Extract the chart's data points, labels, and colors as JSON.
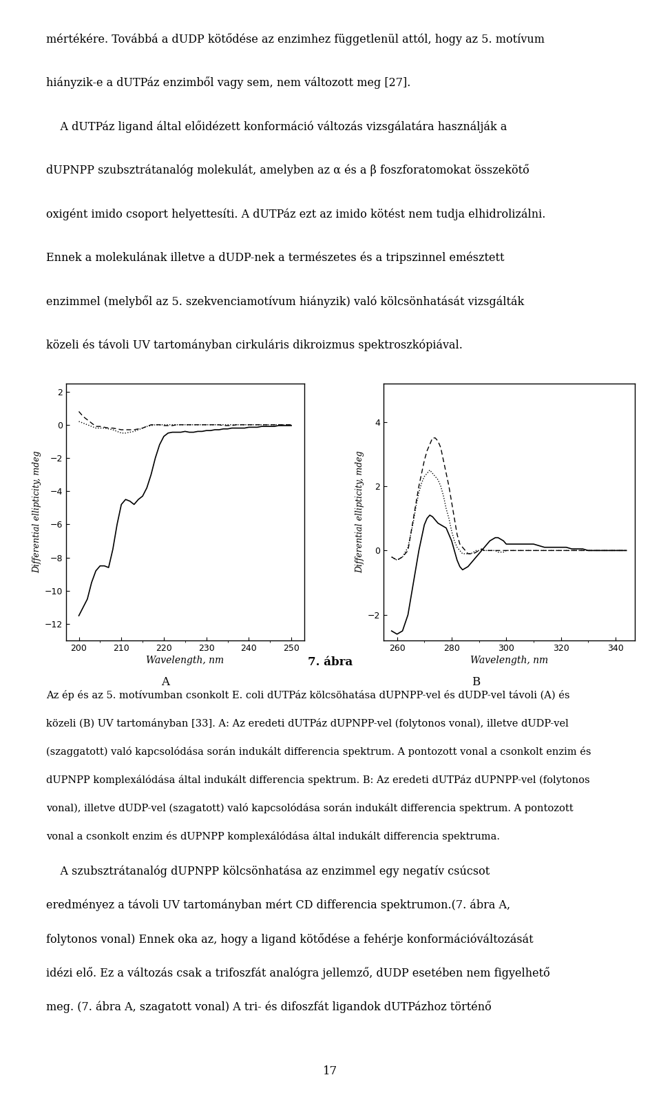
{
  "page_background": "#ffffff",
  "text_color": "#000000",
  "font_size_body": 11.5,
  "font_size_caption": 10.5,
  "font_size_figure_label": 12,
  "font_size_page_num": 12,
  "top_text_lines": [
    "mértékére. Továbbá a dUDP kötődése az enzimhez függetlenül attól, hogy az 5. motívum",
    "",
    "hiányzik-e a dUTPáz enzimből vagy sem, nem változott meg [27].",
    "",
    "    A dUTPáz ligand által előidézett konformáció változás vizsgálatára használják a",
    "",
    "dUPNPP szubsztrátanalóg molekulát, amelyben az α és a β foszforatomokat összekötő",
    "",
    "oxigént imido csoport helyettesíti. A dUTPáz ezt az imido kötést nem tudja elhidrolizálni.",
    "",
    "Ennek a molekulának illetve a dUDP-nek a természetes és a tripszinnel emésztett",
    "",
    "enzimmel (melyből az 5. szekvenciamotívum hiányzik) való kölcsönhatását vizsgálták",
    "",
    "közeli és távoli UV tartományban cirkuláris dikroizmus spektroszkópiával."
  ],
  "figure_title": "7. ábra",
  "label_A": "A",
  "label_B": "B",
  "caption_lines": [
    "Az ép és az 5. motívumban csonkolt E. coli dUTPáz kölcsöhatása dUPNPP-vel és dUDP-vel távoli (A) és",
    "közeli (B) UV tartományban [33]. A: Az eredeti dUTPáz dUPNPP-vel (folytonos vonal), illetve dUDP-vel",
    "(szaggatott) való kapcsolódása során indukált differencia spektrum. A pontozott vonal a csonkolt enzim és",
    "dUPNPP komplexálódása által indukált differencia spektrum. B: Az eredeti dUTPáz dUPNPP-vel (folytonos",
    "vonal), illetve dUDP-vel (szagatott) való kapcsolódása során indukált differencia spektrum. A pontozott",
    "vonal a csonkolt enzim és dUPNPP komplexálódása által indukált differencia spektruma."
  ],
  "bottom_text_lines": [
    "    A szubsztrátanalóg dUPNPP kölcsönhatása az enzimmel egy negatív csúcsot",
    "eredményez a távoli UV tartományban mért CD differencia spektrumon.(7. ábra A,",
    "folytonos vonal) Ennek oka az, hogy a ligand kötődése a fehérje konformációváltozását",
    "idézi elő. Ez a változás csak a trifoszfát analógra jellemző, dUDP esetében nem figyelhető",
    "meg. (7. ábra A, szagatott vonal) A tri- és difoszfát ligandok dUTPázhoz történő"
  ],
  "page_number": "17",
  "plot_A": {
    "xlabel": "Wavelength, nm",
    "ylabel": "Differential ellipticity, mdeg",
    "xlim": [
      197,
      253
    ],
    "ylim": [
      -13,
      2.5
    ],
    "xticks": [
      200,
      210,
      220,
      230,
      240,
      250
    ],
    "yticks": [
      2,
      0,
      -2,
      -4,
      -6,
      -8,
      -10,
      -12
    ],
    "solid_x": [
      200,
      201,
      202,
      203,
      204,
      205,
      206,
      207,
      208,
      209,
      210,
      211,
      212,
      213,
      214,
      215,
      216,
      217,
      218,
      219,
      220,
      221,
      222,
      223,
      224,
      225,
      226,
      227,
      228,
      229,
      230,
      231,
      232,
      233,
      234,
      235,
      236,
      237,
      238,
      239,
      240,
      241,
      242,
      243,
      244,
      245,
      246,
      247,
      248,
      249,
      250
    ],
    "solid_y": [
      -11.5,
      -11.0,
      -10.5,
      -9.5,
      -8.8,
      -8.5,
      -8.5,
      -8.6,
      -7.5,
      -6.0,
      -4.8,
      -4.5,
      -4.6,
      -4.8,
      -4.5,
      -4.3,
      -3.8,
      -3.0,
      -2.0,
      -1.2,
      -0.7,
      -0.5,
      -0.45,
      -0.45,
      -0.45,
      -0.4,
      -0.45,
      -0.45,
      -0.4,
      -0.4,
      -0.35,
      -0.35,
      -0.3,
      -0.3,
      -0.25,
      -0.25,
      -0.2,
      -0.2,
      -0.2,
      -0.2,
      -0.15,
      -0.15,
      -0.15,
      -0.1,
      -0.1,
      -0.1,
      -0.1,
      -0.05,
      -0.05,
      -0.05,
      -0.05
    ],
    "dashed_x": [
      200,
      201,
      202,
      203,
      204,
      205,
      206,
      207,
      208,
      209,
      210,
      211,
      212,
      213,
      214,
      215,
      216,
      217,
      218,
      219,
      220,
      221,
      222,
      223,
      224,
      225,
      226,
      227,
      228,
      229,
      230,
      231,
      232,
      233,
      234,
      235,
      236,
      237,
      238,
      239,
      240,
      241,
      242,
      243,
      244,
      245,
      246,
      247,
      248,
      249,
      250
    ],
    "dashed_y": [
      0.8,
      0.5,
      0.3,
      0.1,
      -0.1,
      -0.1,
      -0.15,
      -0.2,
      -0.2,
      -0.25,
      -0.3,
      -0.3,
      -0.3,
      -0.3,
      -0.25,
      -0.2,
      -0.1,
      0.0,
      0.0,
      0.0,
      -0.05,
      -0.05,
      -0.05,
      0.0,
      0.0,
      0.0,
      0.0,
      0.0,
      0.0,
      0.0,
      0.0,
      0.0,
      0.0,
      0.0,
      -0.05,
      -0.05,
      -0.05,
      0.0,
      0.0,
      0.0,
      0.0,
      0.0,
      0.0,
      0.0,
      0.0,
      0.0,
      0.0,
      0.0,
      0.0,
      0.0,
      0.0
    ],
    "dotted_x": [
      200,
      201,
      202,
      203,
      204,
      205,
      206,
      207,
      208,
      209,
      210,
      211,
      212,
      213,
      214,
      215,
      216,
      217,
      218,
      219,
      220,
      221,
      222,
      223,
      224,
      225,
      226,
      227,
      228,
      229,
      230,
      231,
      232,
      233,
      234,
      235,
      236,
      237,
      238,
      239,
      240,
      241,
      242,
      243,
      244,
      245,
      246,
      247,
      248,
      249,
      250
    ],
    "dotted_y": [
      0.2,
      0.1,
      0.0,
      -0.1,
      -0.2,
      -0.2,
      -0.2,
      -0.25,
      -0.3,
      -0.4,
      -0.5,
      -0.5,
      -0.45,
      -0.4,
      -0.3,
      -0.2,
      -0.1,
      -0.05,
      0.0,
      0.0,
      0.0,
      0.0,
      0.0,
      0.0,
      0.0,
      0.0,
      0.0,
      0.0,
      0.0,
      0.0,
      0.0,
      0.0,
      0.0,
      0.0,
      0.0,
      0.0,
      0.0,
      0.0,
      0.0,
      0.0,
      0.0,
      0.0,
      0.0,
      0.0,
      0.0,
      0.0,
      0.0,
      0.0,
      0.0,
      0.0,
      0.0
    ]
  },
  "plot_B": {
    "xlabel": "Wavelength, nm",
    "ylabel": "Differential ellipticity, mdeg",
    "xlim": [
      255,
      347
    ],
    "ylim": [
      -2.8,
      5.2
    ],
    "xticks": [
      260,
      280,
      300,
      320,
      340
    ],
    "yticks": [
      -2,
      0,
      2,
      4
    ],
    "solid_x": [
      258,
      260,
      262,
      264,
      265,
      266,
      267,
      268,
      269,
      270,
      271,
      272,
      273,
      274,
      275,
      276,
      277,
      278,
      279,
      280,
      281,
      282,
      283,
      284,
      285,
      286,
      287,
      288,
      289,
      290,
      291,
      292,
      293,
      294,
      295,
      296,
      297,
      298,
      299,
      300,
      302,
      304,
      306,
      308,
      310,
      312,
      314,
      316,
      318,
      320,
      322,
      324,
      326,
      328,
      330,
      332,
      334,
      336,
      338,
      340,
      342,
      344
    ],
    "solid_y": [
      -2.5,
      -2.6,
      -2.5,
      -2.0,
      -1.5,
      -1.0,
      -0.5,
      0.0,
      0.4,
      0.8,
      1.0,
      1.1,
      1.05,
      0.95,
      0.85,
      0.8,
      0.75,
      0.7,
      0.5,
      0.3,
      0.0,
      -0.3,
      -0.5,
      -0.6,
      -0.55,
      -0.5,
      -0.4,
      -0.3,
      -0.2,
      -0.1,
      0.0,
      0.1,
      0.2,
      0.3,
      0.35,
      0.4,
      0.4,
      0.35,
      0.3,
      0.2,
      0.2,
      0.2,
      0.2,
      0.2,
      0.2,
      0.15,
      0.1,
      0.1,
      0.1,
      0.1,
      0.1,
      0.05,
      0.05,
      0.05,
      0.0,
      0.0,
      0.0,
      0.0,
      0.0,
      0.0,
      0.0,
      0.0
    ],
    "dashed_x": [
      258,
      260,
      262,
      264,
      265,
      266,
      267,
      268,
      269,
      270,
      271,
      272,
      273,
      274,
      275,
      276,
      277,
      278,
      279,
      280,
      281,
      282,
      283,
      284,
      285,
      286,
      287,
      288,
      289,
      290,
      291,
      292,
      293,
      294,
      295,
      296,
      297,
      298,
      299,
      300,
      302,
      304,
      306,
      308,
      310,
      312,
      314,
      316,
      318,
      320,
      322,
      324,
      326,
      328,
      330,
      332,
      334,
      336,
      338,
      340,
      342,
      344
    ],
    "dashed_y": [
      -0.2,
      -0.3,
      -0.2,
      0.0,
      0.5,
      1.0,
      1.5,
      2.0,
      2.4,
      2.8,
      3.1,
      3.3,
      3.5,
      3.5,
      3.4,
      3.2,
      2.8,
      2.4,
      2.0,
      1.5,
      1.0,
      0.5,
      0.2,
      0.1,
      0.0,
      -0.1,
      -0.1,
      -0.1,
      -0.05,
      0.0,
      0.05,
      0.0,
      0.0,
      0.0,
      0.0,
      0.0,
      0.0,
      0.0,
      0.0,
      0.0,
      0.0,
      0.0,
      0.0,
      0.0,
      0.0,
      0.0,
      0.0,
      0.0,
      0.0,
      0.0,
      0.0,
      0.0,
      0.0,
      0.0,
      0.0,
      0.0,
      0.0,
      0.0,
      0.0,
      0.0,
      0.0,
      0.0
    ],
    "dotted_x": [
      258,
      260,
      262,
      264,
      265,
      266,
      267,
      268,
      269,
      270,
      271,
      272,
      273,
      274,
      275,
      276,
      277,
      278,
      279,
      280,
      281,
      282,
      283,
      284,
      285,
      286,
      287,
      288,
      289,
      290,
      291,
      292,
      293,
      294,
      295,
      296,
      297,
      298,
      299,
      300,
      302,
      304,
      306,
      308,
      310,
      312,
      314,
      316,
      318,
      320,
      322,
      324,
      326,
      328,
      330,
      332,
      334,
      336,
      338,
      340,
      342,
      344
    ],
    "dotted_y": [
      -0.2,
      -0.3,
      -0.2,
      0.1,
      0.5,
      0.9,
      1.4,
      1.8,
      2.1,
      2.3,
      2.4,
      2.5,
      2.4,
      2.3,
      2.2,
      2.0,
      1.7,
      1.3,
      1.0,
      0.6,
      0.3,
      0.1,
      0.0,
      -0.1,
      -0.1,
      -0.1,
      -0.1,
      -0.05,
      0.0,
      0.0,
      0.0,
      0.0,
      0.0,
      0.0,
      0.0,
      0.0,
      -0.05,
      -0.05,
      -0.05,
      0.0,
      0.0,
      0.0,
      0.0,
      0.0,
      0.0,
      0.0,
      0.0,
      0.0,
      0.0,
      0.0,
      0.0,
      0.0,
      0.0,
      0.0,
      0.0,
      0.0,
      0.0,
      0.0,
      0.0,
      0.0,
      0.0,
      0.0
    ]
  }
}
